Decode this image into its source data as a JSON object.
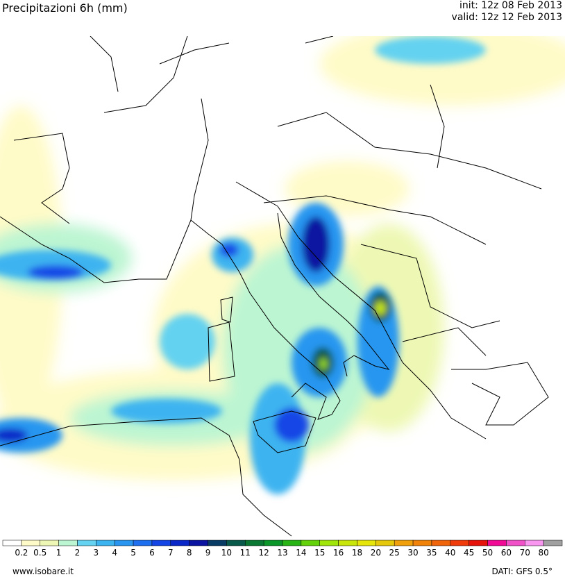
{
  "header": {
    "title": "Precipitazioni 6h (mm)",
    "init": "init: 12z 08 Feb 2013",
    "valid": "valid: 12z 12 Feb 2013"
  },
  "legend": {
    "labels": [
      "0.2",
      "0.5",
      "1",
      "2",
      "3",
      "4",
      "5",
      "6",
      "7",
      "8",
      "9",
      "10",
      "11",
      "12",
      "13",
      "14",
      "15",
      "16",
      "18",
      "20",
      "25",
      "30",
      "35",
      "40",
      "45",
      "50",
      "60",
      "70",
      "80"
    ],
    "colors": [
      "#ffffff",
      "#fffbc8",
      "#eef8b4",
      "#bcf5d2",
      "#64d2f0",
      "#3cb4f0",
      "#2896f0",
      "#1e6ef0",
      "#1446e6",
      "#0a28c8",
      "#0a14a0",
      "#083c64",
      "#0a5a4b",
      "#0a7832",
      "#0a9628",
      "#28b414",
      "#64d20a",
      "#a0e60a",
      "#c8e60a",
      "#e6e60a",
      "#e6c80a",
      "#f0a00a",
      "#f0820a",
      "#f0640a",
      "#f03c0a",
      "#e6140a",
      "#f00a96",
      "#f050c8",
      "#f896f0",
      "#a0a0a0"
    ]
  },
  "footer": {
    "site": "www.isobare.it",
    "source": "DATI: GFS 0.5°"
  }
}
